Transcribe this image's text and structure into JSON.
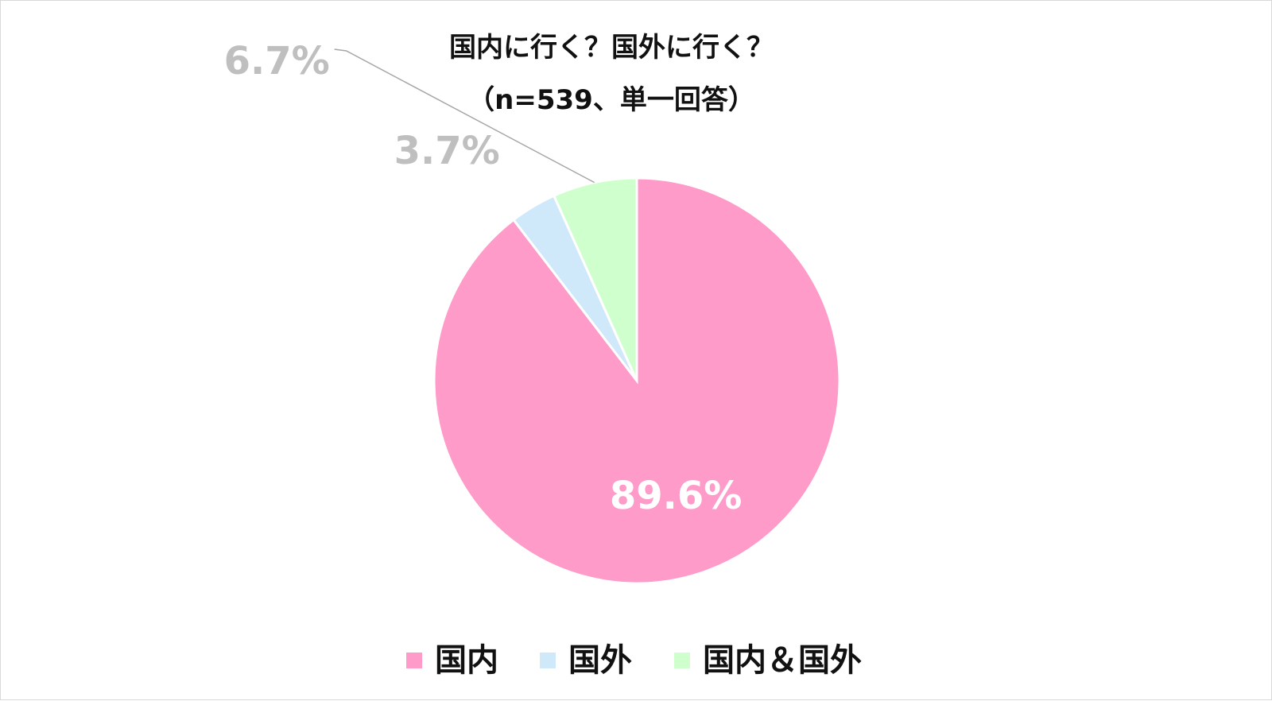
{
  "chart_data": {
    "type": "pie",
    "title": "国内に行く？国外に行く？",
    "subtitle": "（n=539、単一回答）",
    "categories": [
      "国内",
      "国外",
      "国内＆国外"
    ],
    "values": [
      89.6,
      3.7,
      6.7
    ],
    "data_labels": [
      "89.6%",
      "3.7%",
      "6.7%"
    ],
    "colors": [
      "#FF9BC9",
      "#CFE9FB",
      "#CFFFCD"
    ],
    "label_colors": [
      "#FFFFFF",
      "#BFBFBF",
      "#BFBFBF"
    ],
    "leader_line_color": "#A6A6A6",
    "legend": {
      "placement": "bottom",
      "items": [
        "国内",
        "国外",
        "国内＆国外"
      ]
    }
  }
}
